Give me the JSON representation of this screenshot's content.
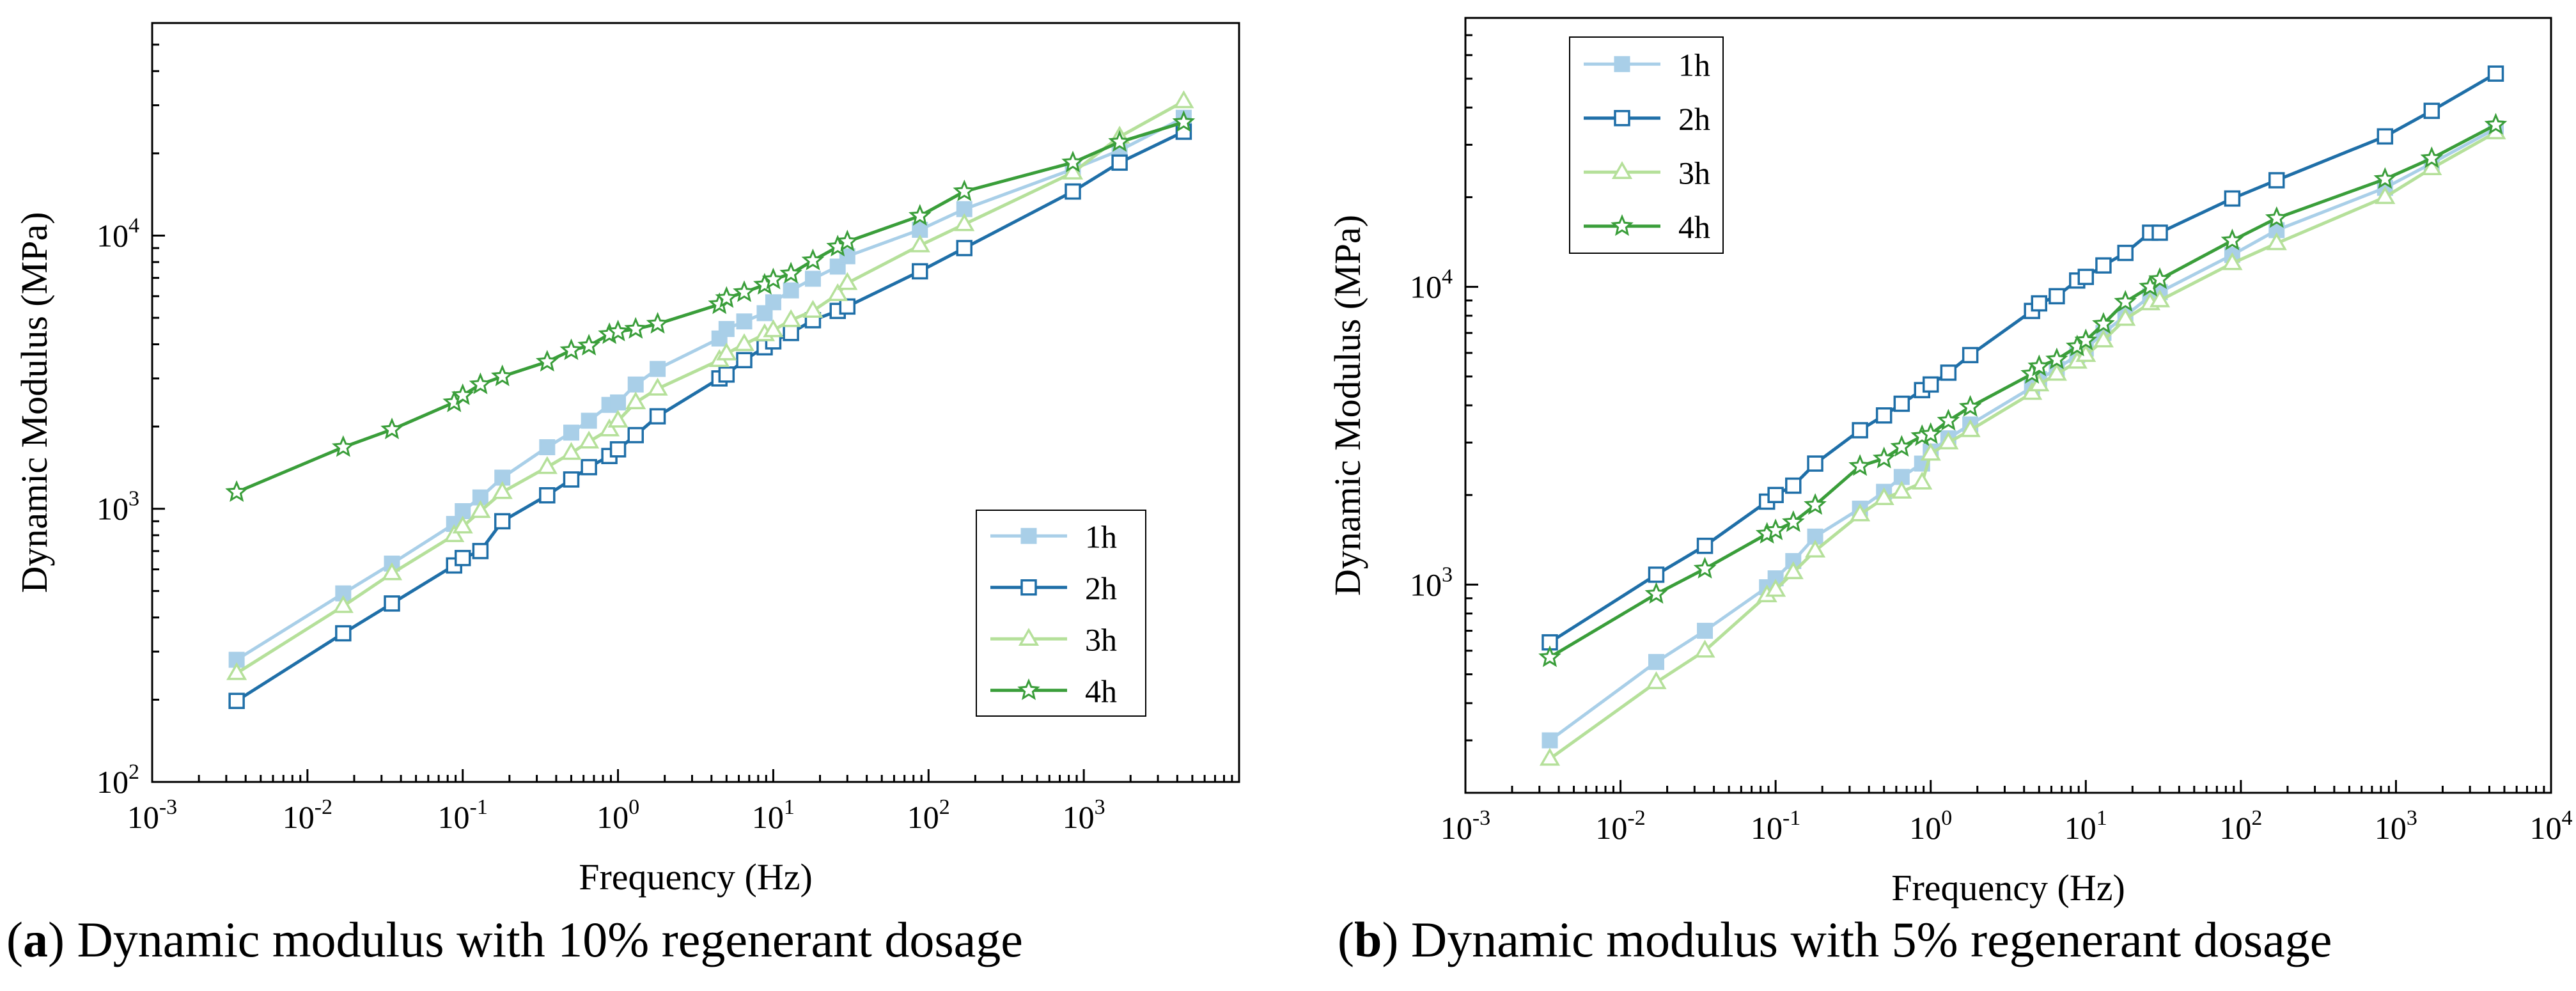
{
  "chart_data": [
    {
      "type": "line",
      "panel_label": "a",
      "caption": "Dynamic modulus with 10% regenerant dosage",
      "xlabel": "Frequency (Hz)",
      "ylabel": "Dynamic Modulus (MPa)",
      "xscale": "log",
      "yscale": "log",
      "xlim": [
        0.001,
        10000
      ],
      "ylim": [
        100,
        60000
      ],
      "x_ticks": [
        {
          "value": 0.001,
          "base": "10",
          "exp": "-3"
        },
        {
          "value": 0.01,
          "base": "10",
          "exp": "-2"
        },
        {
          "value": 0.1,
          "base": "10",
          "exp": "-1"
        },
        {
          "value": 1,
          "base": "10",
          "exp": "0"
        },
        {
          "value": 10,
          "base": "10",
          "exp": "1"
        },
        {
          "value": 100,
          "base": "10",
          "exp": "2"
        },
        {
          "value": 1000,
          "base": "10",
          "exp": "3"
        }
      ],
      "y_ticks": [
        {
          "value": 100,
          "base": "10",
          "exp": "2"
        },
        {
          "value": 1000,
          "base": "10",
          "exp": "3"
        },
        {
          "value": 10000,
          "base": "10",
          "exp": "4"
        }
      ],
      "legend_position": "lower-right",
      "series": [
        {
          "name": "1h",
          "color": "#a9cfe8",
          "marker": "square-filled",
          "x": [
            0.0035,
            0.017,
            0.035,
            0.088,
            0.1,
            0.13,
            0.18,
            0.35,
            0.5,
            0.65,
            0.88,
            1.0,
            1.3,
            1.8,
            4.5,
            5.0,
            6.5,
            8.8,
            10,
            13,
            18,
            26,
            30,
            88,
            170,
            850,
            1700,
            4400
          ],
          "y": [
            280,
            490,
            630,
            880,
            980,
            1100,
            1300,
            1680,
            1900,
            2100,
            2400,
            2450,
            2850,
            3250,
            4200,
            4550,
            4850,
            5200,
            5700,
            6300,
            6950,
            7700,
            8400,
            10500,
            12500,
            17500,
            20500,
            27000
          ]
        },
        {
          "name": "2h",
          "color": "#1f6fa8",
          "marker": "square-open",
          "x": [
            0.0035,
            0.017,
            0.035,
            0.088,
            0.1,
            0.13,
            0.18,
            0.35,
            0.5,
            0.65,
            0.88,
            1.0,
            1.3,
            1.8,
            4.5,
            5.0,
            6.5,
            8.8,
            10,
            13,
            18,
            26,
            30,
            88,
            170,
            850,
            1700,
            4400
          ],
          "y": [
            198,
            350,
            450,
            620,
            660,
            700,
            900,
            1120,
            1280,
            1420,
            1560,
            1650,
            1860,
            2180,
            3000,
            3100,
            3500,
            3900,
            4100,
            4400,
            4900,
            5300,
            5500,
            7400,
            9000,
            14500,
            18500,
            24000
          ]
        },
        {
          "name": "3h",
          "color": "#b5e09a",
          "marker": "triangle-open",
          "x": [
            0.0035,
            0.017,
            0.035,
            0.088,
            0.1,
            0.13,
            0.18,
            0.35,
            0.5,
            0.65,
            0.88,
            1.0,
            1.3,
            1.8,
            4.5,
            5.0,
            6.5,
            8.8,
            10,
            13,
            18,
            26,
            30,
            88,
            170,
            850,
            1700,
            4400
          ],
          "y": [
            250,
            440,
            580,
            800,
            860,
            980,
            1150,
            1420,
            1600,
            1760,
            1950,
            2100,
            2450,
            2750,
            3500,
            3700,
            4000,
            4350,
            4500,
            4900,
            5300,
            6100,
            6700,
            9200,
            11000,
            17000,
            23000,
            31000
          ]
        },
        {
          "name": "4h",
          "color": "#3a9e3a",
          "marker": "star-open",
          "x": [
            0.0035,
            0.017,
            0.035,
            0.088,
            0.1,
            0.13,
            0.18,
            0.35,
            0.5,
            0.65,
            0.88,
            1.0,
            1.3,
            1.8,
            4.5,
            5.0,
            6.5,
            8.8,
            10,
            13,
            18,
            26,
            30,
            88,
            170,
            850,
            1700,
            4400
          ],
          "y": [
            1150,
            1680,
            1950,
            2450,
            2600,
            2850,
            3050,
            3450,
            3800,
            3950,
            4350,
            4450,
            4550,
            4750,
            5600,
            5900,
            6200,
            6600,
            6900,
            7250,
            8100,
            9100,
            9500,
            11800,
            14500,
            18500,
            22000,
            26000
          ]
        }
      ]
    },
    {
      "type": "line",
      "panel_label": "b",
      "caption": "Dynamic modulus with 5% regenerant dosage",
      "xlabel": "Frequency (Hz)",
      "ylabel": "Dynamic Modulus (MPa)",
      "xscale": "log",
      "yscale": "log",
      "xlim": [
        0.001,
        10000
      ],
      "ylim": [
        200,
        80000
      ],
      "x_ticks": [
        {
          "value": 0.001,
          "base": "10",
          "exp": "-3"
        },
        {
          "value": 0.01,
          "base": "10",
          "exp": "-2"
        },
        {
          "value": 0.1,
          "base": "10",
          "exp": "-1"
        },
        {
          "value": 1,
          "base": "10",
          "exp": "0"
        },
        {
          "value": 10,
          "base": "10",
          "exp": "1"
        },
        {
          "value": 100,
          "base": "10",
          "exp": "2"
        },
        {
          "value": 1000,
          "base": "10",
          "exp": "3"
        },
        {
          "value": 10000,
          "base": "10",
          "exp": "4"
        }
      ],
      "y_ticks": [
        {
          "value": 1000,
          "base": "10",
          "exp": "3"
        },
        {
          "value": 10000,
          "base": "10",
          "exp": "4"
        }
      ],
      "legend_position": "top-left",
      "series": [
        {
          "name": "1h",
          "color": "#a9cfe8",
          "marker": "square-filled",
          "x": [
            0.0035,
            0.017,
            0.035,
            0.088,
            0.1,
            0.13,
            0.18,
            0.35,
            0.5,
            0.65,
            0.88,
            1.0,
            1.3,
            1.8,
            4.5,
            5.0,
            6.5,
            8.8,
            10,
            13,
            18,
            26,
            30,
            88,
            170,
            850,
            1700,
            4400
          ],
          "y": [
            300,
            550,
            700,
            980,
            1050,
            1200,
            1450,
            1800,
            2050,
            2300,
            2550,
            2800,
            3100,
            3450,
            4600,
            4900,
            5300,
            5900,
            6200,
            7000,
            8000,
            9300,
            9600,
            12800,
            15500,
            21500,
            26000,
            34000
          ]
        },
        {
          "name": "2h",
          "color": "#1f6fa8",
          "marker": "square-open",
          "x": [
            0.0035,
            0.017,
            0.035,
            0.088,
            0.1,
            0.13,
            0.18,
            0.35,
            0.5,
            0.65,
            0.88,
            1.0,
            1.3,
            1.8,
            4.5,
            5.0,
            6.5,
            8.8,
            10,
            13,
            18,
            26,
            30,
            88,
            170,
            850,
            1700,
            4400
          ],
          "y": [
            640,
            1080,
            1350,
            1900,
            2000,
            2150,
            2550,
            3300,
            3700,
            4050,
            4500,
            4700,
            5150,
            5900,
            8300,
            8800,
            9300,
            10500,
            10800,
            11800,
            13000,
            15200,
            15200,
            19800,
            22800,
            32000,
            39000,
            52000
          ]
        },
        {
          "name": "3h",
          "color": "#b5e09a",
          "marker": "triangle-open",
          "x": [
            0.0035,
            0.017,
            0.035,
            0.088,
            0.1,
            0.13,
            0.18,
            0.35,
            0.5,
            0.65,
            0.88,
            1.0,
            1.3,
            1.8,
            4.5,
            5.0,
            6.5,
            8.8,
            10,
            13,
            18,
            26,
            30,
            88,
            170,
            850,
            1700,
            4400
          ],
          "y": [
            260,
            470,
            600,
            920,
            960,
            1100,
            1300,
            1720,
            1950,
            2050,
            2200,
            2750,
            3000,
            3300,
            4400,
            4700,
            5100,
            5600,
            5900,
            6600,
            7800,
            8800,
            9000,
            12000,
            14000,
            20000,
            25000,
            33000
          ]
        },
        {
          "name": "4h",
          "color": "#3a9e3a",
          "marker": "star-open",
          "x": [
            0.0035,
            0.017,
            0.035,
            0.088,
            0.1,
            0.13,
            0.18,
            0.35,
            0.5,
            0.65,
            0.88,
            1.0,
            1.3,
            1.8,
            4.5,
            5.0,
            6.5,
            8.8,
            10,
            13,
            18,
            26,
            30,
            88,
            170,
            850,
            1700,
            4400
          ],
          "y": [
            570,
            930,
            1130,
            1480,
            1520,
            1620,
            1850,
            2500,
            2650,
            2900,
            3150,
            3200,
            3550,
            3950,
            5100,
            5400,
            5700,
            6300,
            6600,
            7500,
            8900,
            10000,
            10600,
            14300,
            17000,
            23000,
            27000,
            35000
          ]
        }
      ]
    }
  ]
}
